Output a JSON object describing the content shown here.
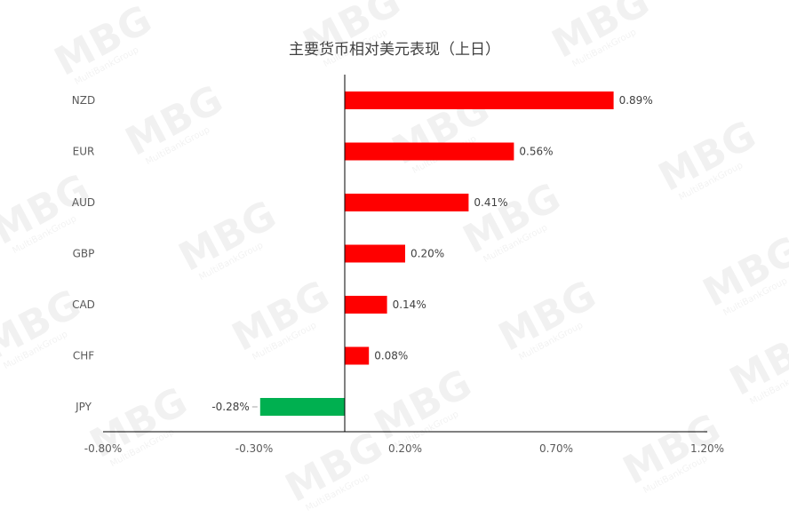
{
  "chart_data": {
    "type": "bar",
    "orientation": "horizontal",
    "title": "主要货币相对美元表现（上日）",
    "categories": [
      "NZD",
      "EUR",
      "AUD",
      "GBP",
      "CAD",
      "CHF",
      "JPY"
    ],
    "values": [
      0.89,
      0.56,
      0.41,
      0.2,
      0.14,
      0.08,
      -0.28
    ],
    "data_labels": [
      "0.89%",
      "0.56%",
      "0.41%",
      "0.20%",
      "0.14%",
      "0.08%",
      "-0.28%"
    ],
    "xlim": [
      -0.8,
      1.2
    ],
    "xticks": [
      -0.8,
      -0.3,
      0.2,
      0.7,
      1.2
    ],
    "xtick_labels": [
      "-0.80%",
      "-0.30%",
      "0.20%",
      "0.70%",
      "1.20%"
    ],
    "xlabel": "",
    "ylabel": "",
    "grid": false,
    "colors": {
      "positive": "#ff0000",
      "negative": "#00b050",
      "axis": "#000000",
      "text": "#595959"
    }
  },
  "watermark": {
    "brand": "MBG",
    "sub": "MultiBankGroup"
  }
}
